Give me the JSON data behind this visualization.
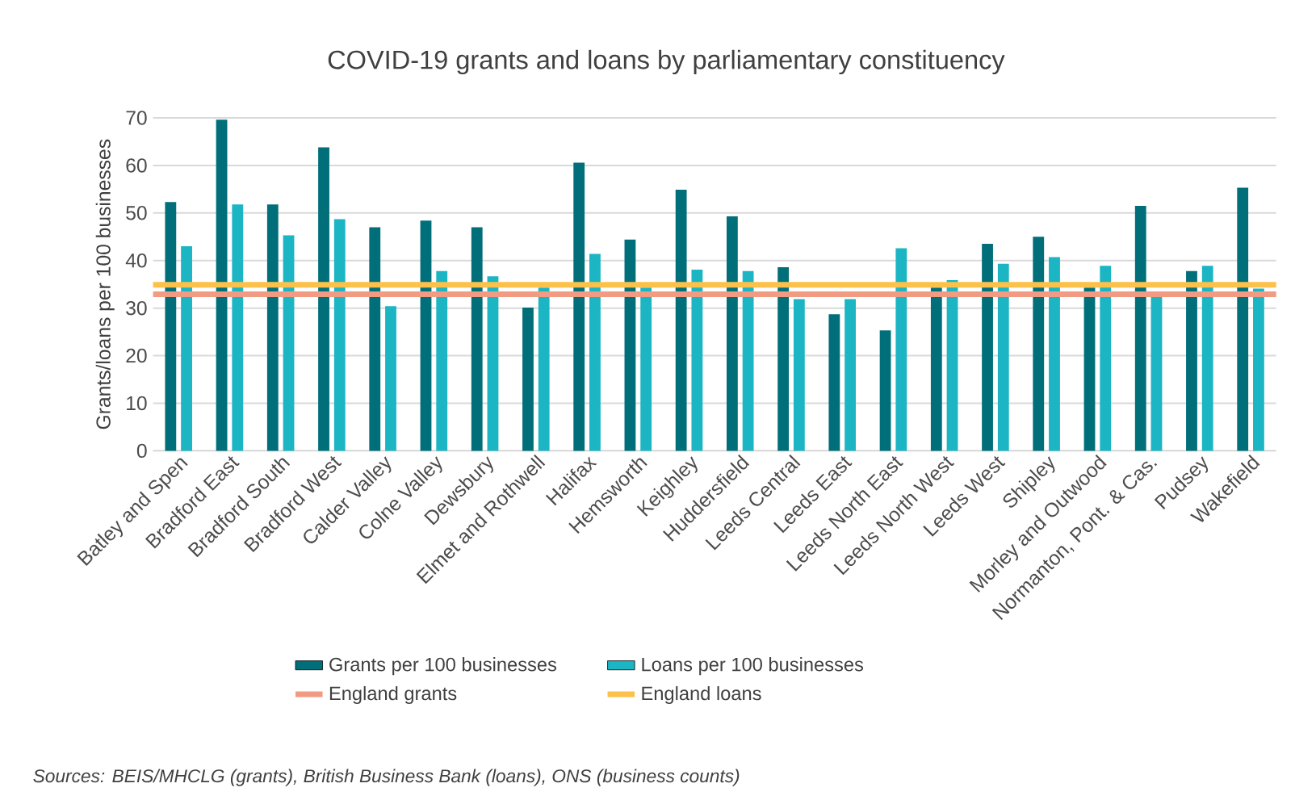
{
  "chart_data": {
    "type": "bar",
    "title": "COVID-19 grants and loans by parliamentary constituency",
    "ylabel": "Grants/loans per 100 businesses",
    "categories": [
      "Batley and Spen",
      "Bradford East",
      "Bradford South",
      "Bradford West",
      "Calder Valley",
      "Colne Valley",
      "Dewsbury",
      "Elmet and Rothwell",
      "Halifax",
      "Hemsworth",
      "Keighley",
      "Huddersfield",
      "Leeds Central",
      "Leeds East",
      "Leeds North East",
      "Leeds North West",
      "Leeds West",
      "Shipley",
      "Morley and Outwood",
      "Normanton, Pont. & Cas.",
      "Pudsey",
      "Wakefield"
    ],
    "series": [
      {
        "name": "Grants per 100 businesses",
        "color": "#006f7a",
        "values": [
          52.3,
          69.6,
          51.8,
          63.8,
          47.0,
          48.4,
          47.0,
          30.1,
          60.6,
          44.4,
          54.9,
          49.3,
          38.6,
          28.7,
          25.3,
          34.3,
          43.5,
          45.0,
          34.3,
          51.5,
          37.8,
          55.3
        ]
      },
      {
        "name": "Loans per 100 businesses",
        "color": "#1bb5c4",
        "values": [
          43.0,
          51.8,
          45.3,
          48.7,
          30.4,
          37.8,
          36.7,
          34.3,
          41.4,
          34.3,
          38.1,
          37.8,
          31.9,
          31.9,
          42.6,
          35.9,
          39.3,
          40.7,
          38.9,
          32.4,
          38.9,
          34.1
        ]
      }
    ],
    "ref_lines": [
      {
        "axis": "y",
        "value": 32.9,
        "label": "England grants",
        "color": "#f29b83"
      },
      {
        "axis": "y",
        "value": 34.9,
        "label": "England loans",
        "color": "#fcc14a"
      }
    ],
    "ylim": [
      0,
      70
    ],
    "yticks": [
      0,
      10,
      20,
      30,
      40,
      50,
      60,
      70
    ],
    "grid": "y",
    "legend": "bottom",
    "annotations": [
      "Sources: BEIS/MHCLG (grants), British Business Bank (loans), ONS (business counts)"
    ]
  }
}
